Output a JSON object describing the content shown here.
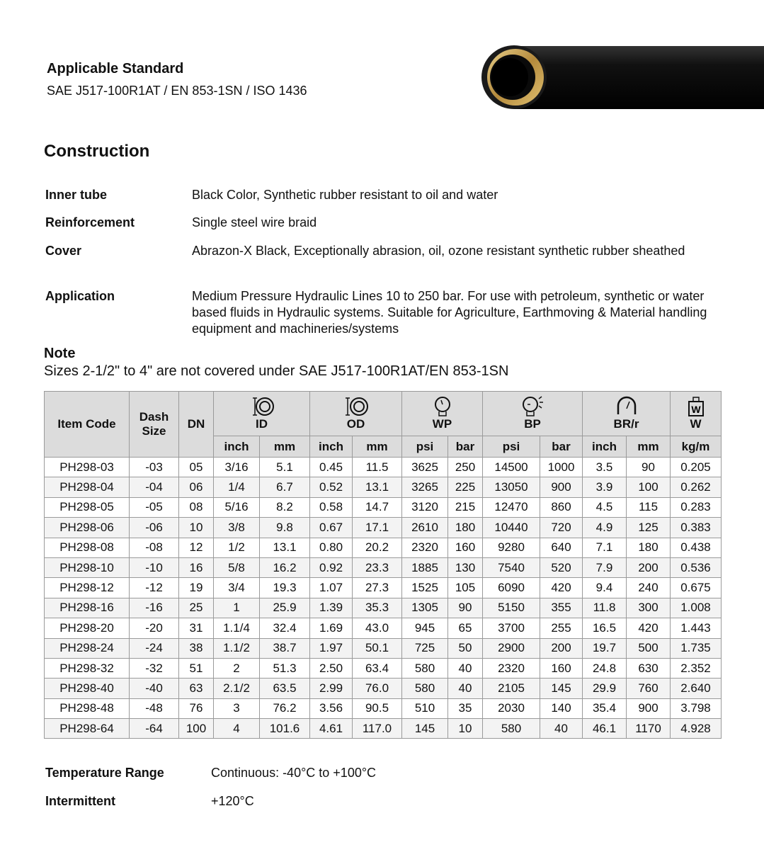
{
  "standard": {
    "title": "Applicable Standard",
    "value": "SAE J517-100R1AT / EN 853-1SN / ISO 1436"
  },
  "construction": {
    "title": "Construction",
    "items": [
      {
        "label": "Inner tube",
        "value": "Black Color, Synthetic rubber resistant to oil and water"
      },
      {
        "label": "Reinforcement",
        "value": "Single steel wire braid"
      },
      {
        "label": "Cover",
        "value": "Abrazon-X Black, Exceptionally abrasion, oil, ozone resistant synthetic rubber sheathed"
      },
      {
        "label": "Application",
        "value": "Medium Pressure Hydraulic Lines 10 to 250 bar. For use with petroleum, synthetic or water based fluids in Hydraulic systems. Suitable for Agriculture, Earthmoving & Material handling equipment and machineries/systems"
      }
    ]
  },
  "note": {
    "title": "Note",
    "text": "Sizes 2-1/2\" to 4\" are not covered under SAE J517-100R1AT/EN 853-1SN"
  },
  "table": {
    "groups": [
      {
        "label": "Item Code",
        "icon": ""
      },
      {
        "label": "Dash Size",
        "icon": ""
      },
      {
        "label": "DN",
        "icon": ""
      },
      {
        "label": "ID",
        "icon": "inner-diameter-icon"
      },
      {
        "label": "OD",
        "icon": "outer-diameter-icon"
      },
      {
        "label": "WP",
        "icon": "pressure-gauge-icon"
      },
      {
        "label": "BP",
        "icon": "burst-gauge-icon"
      },
      {
        "label": "BR/r",
        "icon": "bend-radius-icon"
      },
      {
        "label": "W",
        "icon": "weight-icon"
      }
    ],
    "units": [
      "inch",
      "mm",
      "inch",
      "mm",
      "psi",
      "bar",
      "psi",
      "bar",
      "inch",
      "mm",
      "kg/m"
    ],
    "rows": [
      [
        "PH298-03",
        "-03",
        "05",
        "3/16",
        "5.1",
        "0.45",
        "11.5",
        "3625",
        "250",
        "14500",
        "1000",
        "3.5",
        "90",
        "0.205"
      ],
      [
        "PH298-04",
        "-04",
        "06",
        "1/4",
        "6.7",
        "0.52",
        "13.1",
        "3265",
        "225",
        "13050",
        "900",
        "3.9",
        "100",
        "0.262"
      ],
      [
        "PH298-05",
        "-05",
        "08",
        "5/16",
        "8.2",
        "0.58",
        "14.7",
        "3120",
        "215",
        "12470",
        "860",
        "4.5",
        "115",
        "0.283"
      ],
      [
        "PH298-06",
        "-06",
        "10",
        "3/8",
        "9.8",
        "0.67",
        "17.1",
        "2610",
        "180",
        "10440",
        "720",
        "4.9",
        "125",
        "0.383"
      ],
      [
        "PH298-08",
        "-08",
        "12",
        "1/2",
        "13.1",
        "0.80",
        "20.2",
        "2320",
        "160",
        "9280",
        "640",
        "7.1",
        "180",
        "0.438"
      ],
      [
        "PH298-10",
        "-10",
        "16",
        "5/8",
        "16.2",
        "0.92",
        "23.3",
        "1885",
        "130",
        "7540",
        "520",
        "7.9",
        "200",
        "0.536"
      ],
      [
        "PH298-12",
        "-12",
        "19",
        "3/4",
        "19.3",
        "1.07",
        "27.3",
        "1525",
        "105",
        "6090",
        "420",
        "9.4",
        "240",
        "0.675"
      ],
      [
        "PH298-16",
        "-16",
        "25",
        "1",
        "25.9",
        "1.39",
        "35.3",
        "1305",
        "90",
        "5150",
        "355",
        "11.8",
        "300",
        "1.008"
      ],
      [
        "PH298-20",
        "-20",
        "31",
        "1.1/4",
        "32.4",
        "1.69",
        "43.0",
        "945",
        "65",
        "3700",
        "255",
        "16.5",
        "420",
        "1.443"
      ],
      [
        "PH298-24",
        "-24",
        "38",
        "1.1/2",
        "38.7",
        "1.97",
        "50.1",
        "725",
        "50",
        "2900",
        "200",
        "19.7",
        "500",
        "1.735"
      ],
      [
        "PH298-32",
        "-32",
        "51",
        "2",
        "51.3",
        "2.50",
        "63.4",
        "580",
        "40",
        "2320",
        "160",
        "24.8",
        "630",
        "2.352"
      ],
      [
        "PH298-40",
        "-40",
        "63",
        "2.1/2",
        "63.5",
        "2.99",
        "76.0",
        "580",
        "40",
        "2105",
        "145",
        "29.9",
        "760",
        "2.640"
      ],
      [
        "PH298-48",
        "-48",
        "76",
        "3",
        "76.2",
        "3.56",
        "90.5",
        "510",
        "35",
        "2030",
        "140",
        "35.4",
        "900",
        "3.798"
      ],
      [
        "PH298-64",
        "-64",
        "100",
        "4",
        "101.6",
        "4.61",
        "117.0",
        "145",
        "10",
        "580",
        "40",
        "46.1",
        "1170",
        "4.928"
      ]
    ]
  },
  "temperature": [
    {
      "label": "Temperature Range",
      "value": "Continuous: -40°C to +100°C"
    },
    {
      "label": "Intermittent",
      "value": "+120°C"
    }
  ]
}
